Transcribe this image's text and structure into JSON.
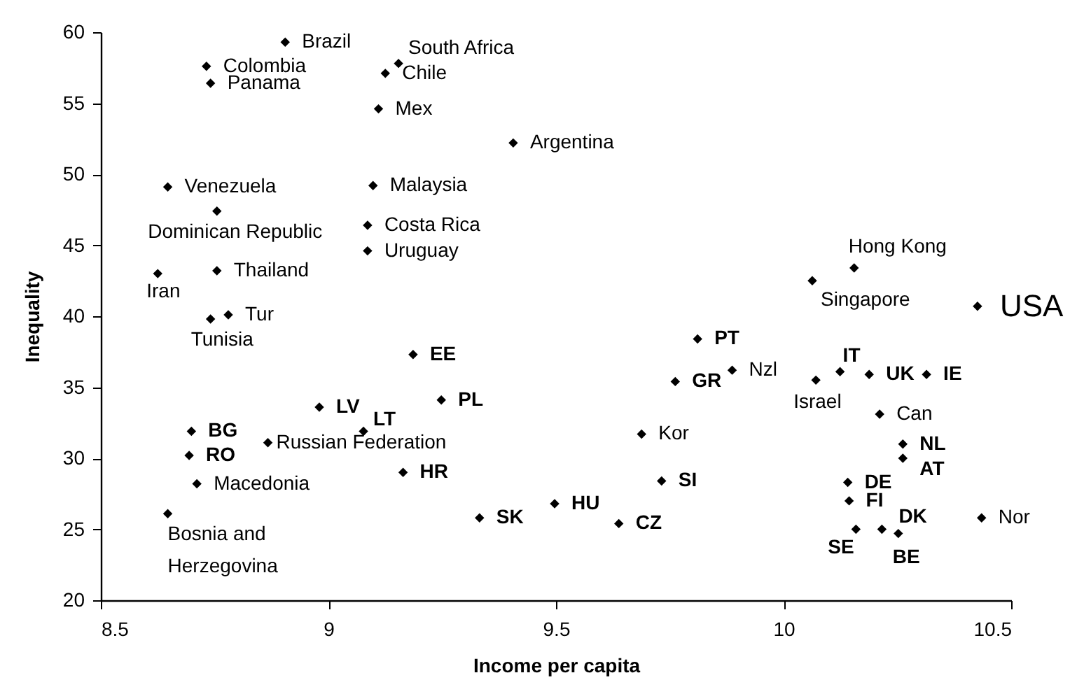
{
  "chart_data": {
    "type": "scatter",
    "xlabel": "Income per capita",
    "ylabel": "Inequality",
    "xlim": [
      8.5,
      10.5
    ],
    "xticks": [
      8.5,
      9,
      9.5,
      10,
      10.5
    ],
    "ylim": [
      20,
      60
    ],
    "yticks": [
      20,
      25,
      30,
      35,
      40,
      45,
      50,
      55,
      60
    ],
    "grid": false,
    "marker": "diamond",
    "series": [
      {
        "color": "#000000",
        "x": [
          8.905,
          8.732,
          8.741,
          9.154,
          9.125,
          9.11,
          9.406,
          8.647,
          8.755,
          9.098,
          9.086,
          9.086,
          8.625,
          8.755,
          8.78,
          8.741,
          10.155,
          10.063,
          10.426,
          9.186,
          9.811,
          9.887,
          9.762,
          10.071,
          10.124,
          10.188,
          10.314,
          8.98,
          9.248,
          9.077,
          8.699,
          8.694,
          8.867,
          9.688,
          10.211,
          10.262,
          10.262,
          8.711,
          9.164,
          9.732,
          10.141,
          10.144,
          9.497,
          8.647,
          9.332,
          9.638,
          10.435,
          10.159,
          10.216,
          10.252
        ],
        "values": [
          59.3,
          57.6,
          56.4,
          57.8,
          57.1,
          54.6,
          52.2,
          49.1,
          47.4,
          49.2,
          46.4,
          44.6,
          43.0,
          43.2,
          40.1,
          39.8,
          43.4,
          42.5,
          40.7,
          37.3,
          38.4,
          36.2,
          35.4,
          35.5,
          36.1,
          35.9,
          35.9,
          33.6,
          34.1,
          31.9,
          31.9,
          30.2,
          31.1,
          31.7,
          33.1,
          31.0,
          30.0,
          28.2,
          29.0,
          28.4,
          28.3,
          27.0,
          26.8,
          26.1,
          25.8,
          25.4,
          25.8,
          25.0,
          25.0,
          24.7
        ]
      }
    ],
    "annotations": [
      {
        "text": "Brazil",
        "x": 8.905,
        "y": 59.3
      },
      {
        "text": "Colombia",
        "x": 8.732,
        "y": 57.6
      },
      {
        "text": "Panama",
        "x": 8.741,
        "y": 56.4
      },
      {
        "text": "South Africa",
        "x": 9.154,
        "y": 57.8
      },
      {
        "text": "Chile",
        "x": 9.125,
        "y": 57.1
      },
      {
        "text": "Mex",
        "x": 9.11,
        "y": 54.6
      },
      {
        "text": "Argentina",
        "x": 9.406,
        "y": 52.2
      },
      {
        "text": "Venezuela",
        "x": 8.647,
        "y": 49.1
      },
      {
        "text": "Dominican Republic",
        "x": 8.755,
        "y": 47.4
      },
      {
        "text": "Malaysia",
        "x": 9.098,
        "y": 49.2
      },
      {
        "text": "Costa Rica",
        "x": 9.086,
        "y": 46.4
      },
      {
        "text": "Uruguay",
        "x": 9.086,
        "y": 44.6
      },
      {
        "text": "Iran",
        "x": 8.625,
        "y": 43.0
      },
      {
        "text": "Thailand",
        "x": 8.755,
        "y": 43.2
      },
      {
        "text": "Tur",
        "x": 8.78,
        "y": 40.1
      },
      {
        "text": "Tunisia",
        "x": 8.741,
        "y": 39.8
      },
      {
        "text": "Hong Kong",
        "x": 10.155,
        "y": 43.4
      },
      {
        "text": "Singapore",
        "x": 10.063,
        "y": 42.5
      },
      {
        "text": "USA",
        "x": 10.426,
        "y": 40.7
      },
      {
        "text": "EE",
        "x": 9.186,
        "y": 37.3
      },
      {
        "text": "PT",
        "x": 9.811,
        "y": 38.4
      },
      {
        "text": "Nzl",
        "x": 9.887,
        "y": 36.2
      },
      {
        "text": "GR",
        "x": 9.762,
        "y": 35.4
      },
      {
        "text": "Israel",
        "x": 10.071,
        "y": 35.5
      },
      {
        "text": "IT",
        "x": 10.124,
        "y": 36.1
      },
      {
        "text": "UK",
        "x": 10.188,
        "y": 35.9
      },
      {
        "text": "IE",
        "x": 10.314,
        "y": 35.9
      },
      {
        "text": "LV",
        "x": 8.98,
        "y": 33.6
      },
      {
        "text": "PL",
        "x": 9.248,
        "y": 34.1
      },
      {
        "text": "LT",
        "x": 9.077,
        "y": 31.9
      },
      {
        "text": "BG",
        "x": 8.699,
        "y": 31.9
      },
      {
        "text": "RO",
        "x": 8.694,
        "y": 30.2
      },
      {
        "text": "Russian Federation",
        "x": 8.867,
        "y": 31.1
      },
      {
        "text": "Kor",
        "x": 9.688,
        "y": 31.7
      },
      {
        "text": "Can",
        "x": 10.211,
        "y": 33.1
      },
      {
        "text": "NL",
        "x": 10.262,
        "y": 31.0
      },
      {
        "text": "AT",
        "x": 10.262,
        "y": 30.0
      },
      {
        "text": "Macedonia",
        "x": 8.711,
        "y": 28.2
      },
      {
        "text": "HR",
        "x": 9.164,
        "y": 29.0
      },
      {
        "text": "SI",
        "x": 9.732,
        "y": 28.4
      },
      {
        "text": "DE",
        "x": 10.141,
        "y": 28.3
      },
      {
        "text": "FI",
        "x": 10.144,
        "y": 27.0
      },
      {
        "text": "HU",
        "x": 9.497,
        "y": 26.8
      },
      {
        "text": "Bosnia and Herzegovina",
        "x": 8.647,
        "y": 26.1
      },
      {
        "text": "SK",
        "x": 9.332,
        "y": 25.8
      },
      {
        "text": "CZ",
        "x": 9.638,
        "y": 25.4
      },
      {
        "text": "Nor",
        "x": 10.435,
        "y": 25.8
      },
      {
        "text": "SE",
        "x": 10.159,
        "y": 25.0
      },
      {
        "text": "DK",
        "x": 10.216,
        "y": 25.0
      },
      {
        "text": "BE",
        "x": 10.252,
        "y": 24.7
      }
    ]
  }
}
